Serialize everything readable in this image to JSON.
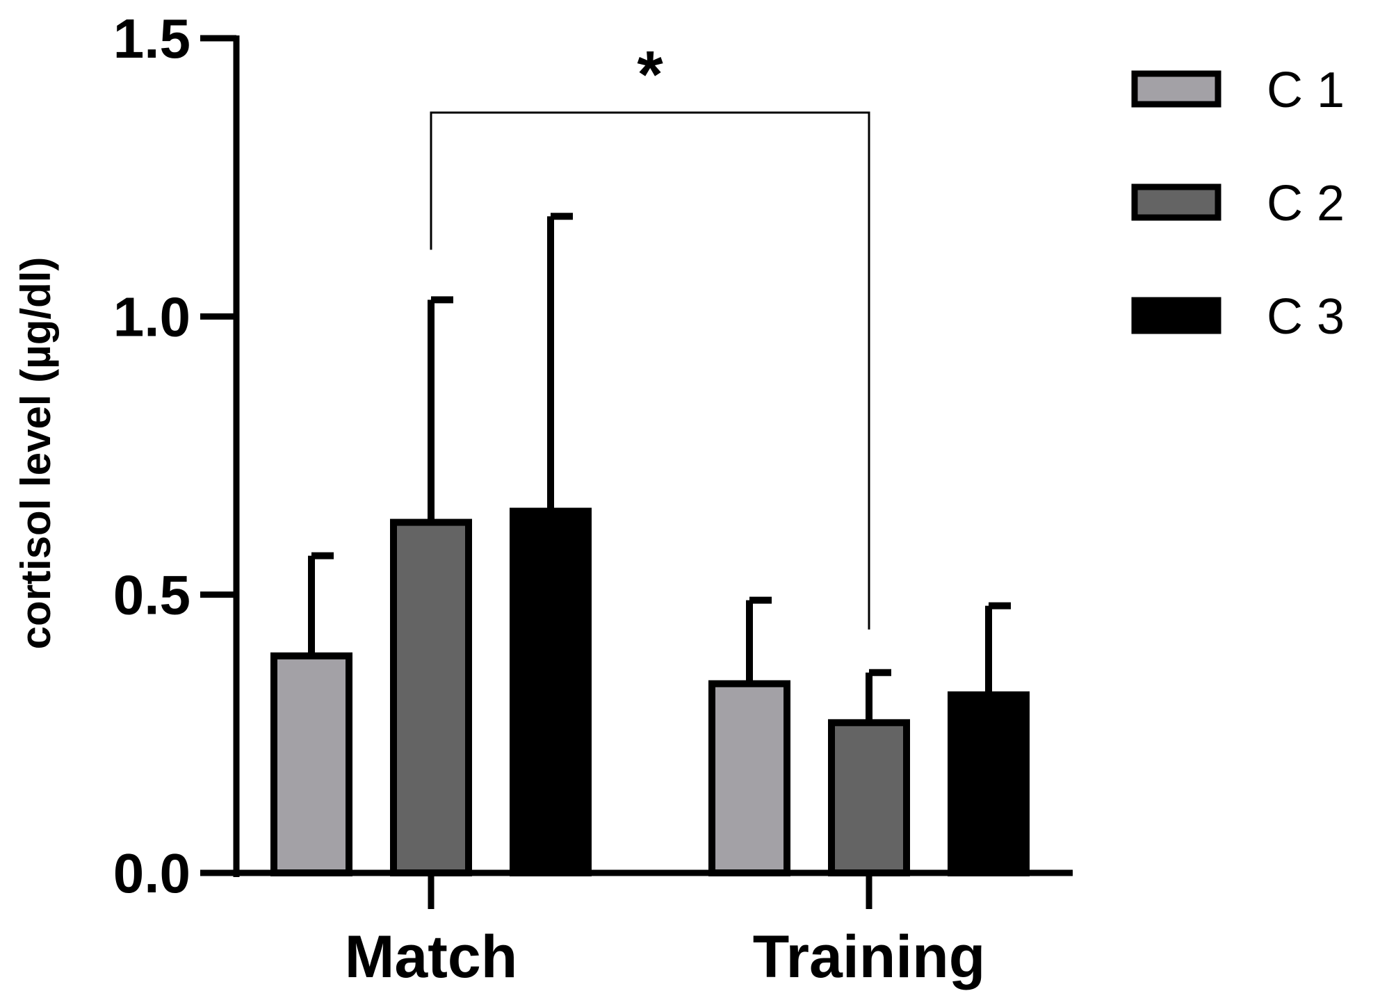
{
  "chart_data": {
    "type": "bar",
    "ylabel": "cortisol level (µg/dl)",
    "xlabel": "",
    "ylim": [
      0,
      1.5
    ],
    "yticks": [
      "0.0",
      "0.5",
      "1.0",
      "1.5"
    ],
    "categories": [
      "Match",
      "Training"
    ],
    "series": [
      {
        "name": "C 1",
        "color": "#a3a1a6",
        "values": [
          0.39,
          0.34
        ],
        "errors": [
          0.18,
          0.15
        ]
      },
      {
        "name": "C 2",
        "color": "#646464",
        "values": [
          0.63,
          0.27
        ],
        "errors": [
          0.4,
          0.09
        ]
      },
      {
        "name": "C 3",
        "color": "#000000",
        "values": [
          0.65,
          0.32
        ],
        "errors": [
          0.53,
          0.16
        ]
      }
    ],
    "annotations": [
      {
        "text": "*",
        "between": [
          "Match C 2",
          "Training C 2"
        ]
      }
    ],
    "legend": "top-right",
    "grid": false
  }
}
